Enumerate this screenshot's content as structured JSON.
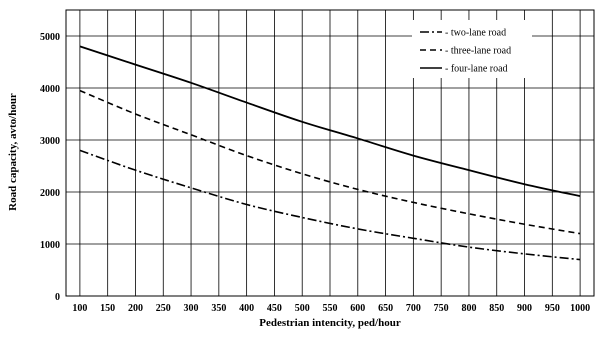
{
  "chart_data": {
    "type": "line",
    "title": "",
    "xlabel": "Pedestrian intencity, ped/hour",
    "ylabel": "Road capacity, avto/hour",
    "xlim": [
      75,
      1025
    ],
    "ylim": [
      0,
      5500
    ],
    "x_ticks": [
      100,
      150,
      200,
      250,
      300,
      350,
      400,
      450,
      500,
      550,
      600,
      650,
      700,
      750,
      800,
      850,
      900,
      950,
      1000
    ],
    "y_ticks": [
      0,
      1000,
      2000,
      3000,
      4000,
      5000
    ],
    "grid": true,
    "legend_position": "top-right",
    "x": [
      100,
      200,
      300,
      400,
      500,
      600,
      700,
      800,
      900,
      1000
    ],
    "series": [
      {
        "name": "two-lane road",
        "style": "dash-dot",
        "color": "#000000",
        "values": [
          2800,
          2420,
          2080,
          1760,
          1510,
          1290,
          1110,
          940,
          810,
          700
        ]
      },
      {
        "name": "three-lane road",
        "style": "dashed",
        "color": "#000000",
        "values": [
          3950,
          3500,
          3100,
          2700,
          2350,
          2050,
          1800,
          1580,
          1380,
          1200
        ]
      },
      {
        "name": "four-lane road",
        "style": "solid",
        "color": "#000000",
        "values": [
          4800,
          4450,
          4100,
          3720,
          3350,
          3030,
          2700,
          2420,
          2150,
          1920
        ]
      }
    ]
  }
}
